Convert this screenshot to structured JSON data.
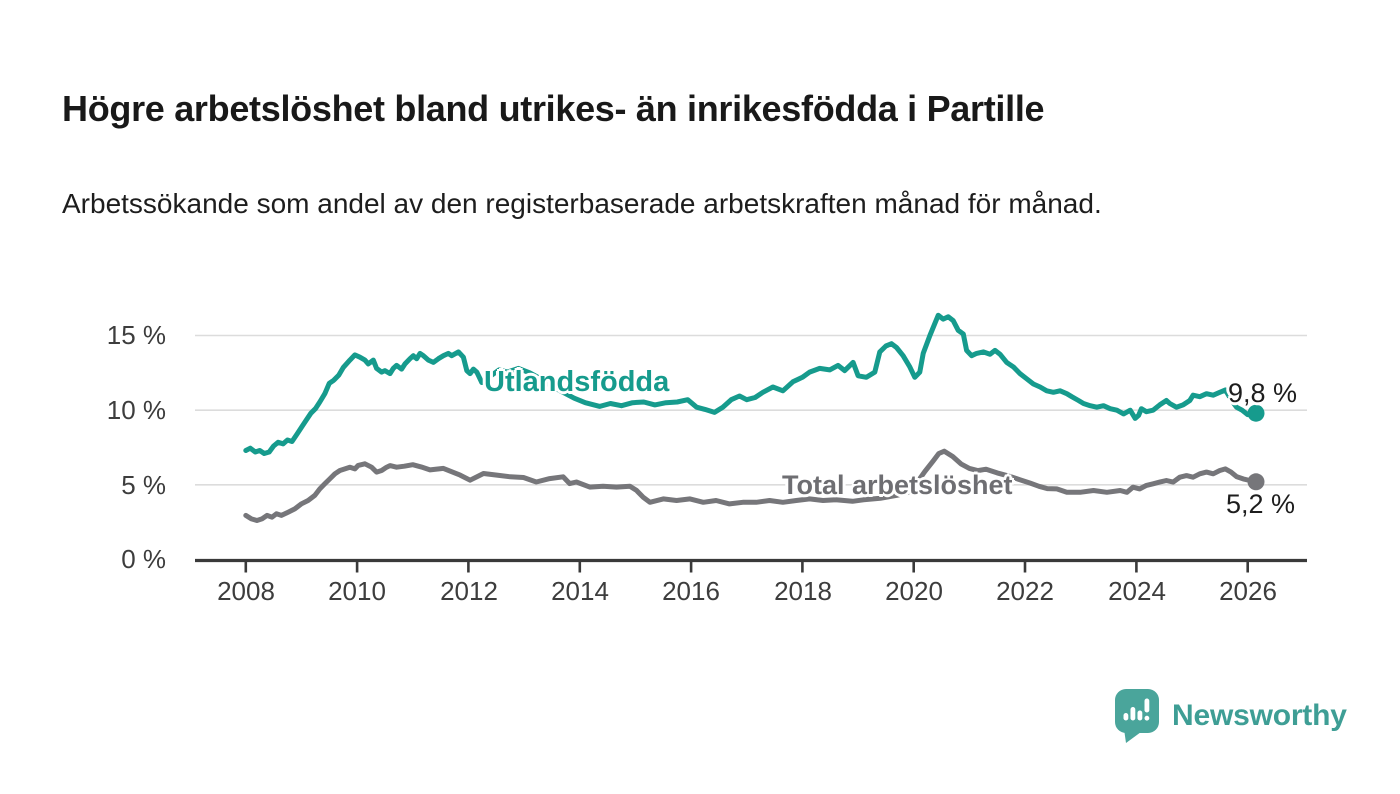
{
  "header": {
    "title": "Högre arbetslöshet bland utrikes- än inrikesfödda i Partille",
    "subtitle": "Arbetssökande som andel av den registerbaserade arbetskraften månad för månad."
  },
  "chart_data": {
    "type": "line",
    "title": "Högre arbetslöshet bland utrikes- än inrikesfödda i Partille",
    "subtitle": "Arbetssökande som andel av den registerbaserade arbetskraften månad för månad.",
    "unit": "%",
    "legend_position": "inline-labels-on-lines",
    "x_axis": {
      "range": [
        2007.1,
        2027.1
      ],
      "ticks": [
        2008,
        2010,
        2012,
        2014,
        2016,
        2018,
        2020,
        2022,
        2024,
        2026
      ],
      "grid": false
    },
    "y_axis": {
      "range": [
        0,
        17.5
      ],
      "gridlines": [
        5,
        10,
        15
      ],
      "ticks": [
        {
          "value": 0,
          "label": "0 %"
        },
        {
          "value": 5,
          "label": "5 %"
        },
        {
          "value": 10,
          "label": "10 %"
        },
        {
          "value": 15,
          "label": "15 %"
        }
      ]
    },
    "series": [
      {
        "name": "Utlandsfödda",
        "color": "#169b8d",
        "end_label": "9,8 %",
        "end_value": 9.8,
        "points": [
          [
            2008.0,
            7.3
          ],
          [
            2008.08,
            7.45
          ],
          [
            2008.17,
            7.2
          ],
          [
            2008.25,
            7.3
          ],
          [
            2008.33,
            7.1
          ],
          [
            2008.42,
            7.2
          ],
          [
            2008.5,
            7.6
          ],
          [
            2008.58,
            7.85
          ],
          [
            2008.67,
            7.75
          ],
          [
            2008.75,
            8.0
          ],
          [
            2008.83,
            7.9
          ],
          [
            2008.92,
            8.4
          ],
          [
            2009.0,
            8.85
          ],
          [
            2009.08,
            9.3
          ],
          [
            2009.17,
            9.8
          ],
          [
            2009.25,
            10.1
          ],
          [
            2009.33,
            10.55
          ],
          [
            2009.42,
            11.1
          ],
          [
            2009.5,
            11.8
          ],
          [
            2009.58,
            12.0
          ],
          [
            2009.67,
            12.35
          ],
          [
            2009.75,
            12.85
          ],
          [
            2009.87,
            13.35
          ],
          [
            2009.96,
            13.7
          ],
          [
            2010.05,
            13.55
          ],
          [
            2010.14,
            13.35
          ],
          [
            2010.2,
            13.1
          ],
          [
            2010.29,
            13.35
          ],
          [
            2010.35,
            12.8
          ],
          [
            2010.44,
            12.55
          ],
          [
            2010.5,
            12.65
          ],
          [
            2010.59,
            12.45
          ],
          [
            2010.65,
            12.8
          ],
          [
            2010.71,
            13.0
          ],
          [
            2010.8,
            12.75
          ],
          [
            2010.86,
            13.1
          ],
          [
            2010.95,
            13.45
          ],
          [
            2011.01,
            13.65
          ],
          [
            2011.07,
            13.45
          ],
          [
            2011.13,
            13.8
          ],
          [
            2011.19,
            13.65
          ],
          [
            2011.28,
            13.35
          ],
          [
            2011.37,
            13.2
          ],
          [
            2011.46,
            13.45
          ],
          [
            2011.55,
            13.65
          ],
          [
            2011.64,
            13.8
          ],
          [
            2011.7,
            13.65
          ],
          [
            2011.82,
            13.9
          ],
          [
            2011.91,
            13.55
          ],
          [
            2011.97,
            12.65
          ],
          [
            2012.03,
            12.45
          ],
          [
            2012.09,
            12.75
          ],
          [
            2012.15,
            12.55
          ],
          [
            2012.24,
            11.85
          ],
          [
            2012.32,
            12.05
          ],
          [
            2012.42,
            12.35
          ],
          [
            2012.55,
            12.7
          ],
          [
            2012.7,
            12.55
          ],
          [
            2012.9,
            12.8
          ],
          [
            2013.1,
            12.5
          ],
          [
            2013.3,
            12.1
          ],
          [
            2013.5,
            11.6
          ],
          [
            2013.7,
            11.2
          ],
          [
            2013.9,
            10.8
          ],
          [
            2014.1,
            10.5
          ],
          [
            2014.36,
            10.25
          ],
          [
            2014.55,
            10.45
          ],
          [
            2014.75,
            10.3
          ],
          [
            2014.95,
            10.5
          ],
          [
            2015.15,
            10.55
          ],
          [
            2015.35,
            10.35
          ],
          [
            2015.55,
            10.5
          ],
          [
            2015.75,
            10.55
          ],
          [
            2015.94,
            10.7
          ],
          [
            2016.1,
            10.2
          ],
          [
            2016.25,
            10.05
          ],
          [
            2016.42,
            9.85
          ],
          [
            2016.57,
            10.2
          ],
          [
            2016.72,
            10.7
          ],
          [
            2016.87,
            10.95
          ],
          [
            2017.0,
            10.7
          ],
          [
            2017.15,
            10.85
          ],
          [
            2017.29,
            11.2
          ],
          [
            2017.47,
            11.55
          ],
          [
            2017.65,
            11.3
          ],
          [
            2017.83,
            11.9
          ],
          [
            2018.0,
            12.2
          ],
          [
            2018.13,
            12.55
          ],
          [
            2018.31,
            12.8
          ],
          [
            2018.49,
            12.7
          ],
          [
            2018.64,
            13.0
          ],
          [
            2018.76,
            12.65
          ],
          [
            2018.91,
            13.2
          ],
          [
            2019.0,
            12.3
          ],
          [
            2019.15,
            12.2
          ],
          [
            2019.3,
            12.55
          ],
          [
            2019.39,
            13.9
          ],
          [
            2019.5,
            14.3
          ],
          [
            2019.6,
            14.45
          ],
          [
            2019.69,
            14.2
          ],
          [
            2019.81,
            13.65
          ],
          [
            2019.93,
            12.9
          ],
          [
            2020.02,
            12.2
          ],
          [
            2020.11,
            12.55
          ],
          [
            2020.17,
            13.8
          ],
          [
            2020.29,
            15.0
          ],
          [
            2020.44,
            16.35
          ],
          [
            2020.53,
            16.1
          ],
          [
            2020.62,
            16.25
          ],
          [
            2020.71,
            16.0
          ],
          [
            2020.8,
            15.35
          ],
          [
            2020.89,
            15.1
          ],
          [
            2020.95,
            14.0
          ],
          [
            2021.04,
            13.65
          ],
          [
            2021.13,
            13.8
          ],
          [
            2021.25,
            13.9
          ],
          [
            2021.37,
            13.75
          ],
          [
            2021.46,
            14.0
          ],
          [
            2021.55,
            13.75
          ],
          [
            2021.67,
            13.2
          ],
          [
            2021.79,
            12.9
          ],
          [
            2021.91,
            12.45
          ],
          [
            2022.03,
            12.1
          ],
          [
            2022.15,
            11.75
          ],
          [
            2022.27,
            11.55
          ],
          [
            2022.39,
            11.3
          ],
          [
            2022.51,
            11.2
          ],
          [
            2022.63,
            11.3
          ],
          [
            2022.75,
            11.1
          ],
          [
            2022.84,
            10.9
          ],
          [
            2022.96,
            10.65
          ],
          [
            2023.05,
            10.45
          ],
          [
            2023.17,
            10.3
          ],
          [
            2023.29,
            10.2
          ],
          [
            2023.41,
            10.3
          ],
          [
            2023.53,
            10.1
          ],
          [
            2023.65,
            10.0
          ],
          [
            2023.77,
            9.75
          ],
          [
            2023.89,
            10.0
          ],
          [
            2023.98,
            9.45
          ],
          [
            2024.04,
            9.65
          ],
          [
            2024.09,
            10.1
          ],
          [
            2024.18,
            9.9
          ],
          [
            2024.3,
            10.0
          ],
          [
            2024.42,
            10.35
          ],
          [
            2024.54,
            10.65
          ],
          [
            2024.6,
            10.45
          ],
          [
            2024.72,
            10.2
          ],
          [
            2024.84,
            10.35
          ],
          [
            2024.96,
            10.65
          ],
          [
            2025.02,
            11.0
          ],
          [
            2025.14,
            10.9
          ],
          [
            2025.26,
            11.1
          ],
          [
            2025.38,
            11.0
          ],
          [
            2025.5,
            11.2
          ],
          [
            2025.6,
            11.35
          ],
          [
            2025.72,
            10.6
          ],
          [
            2025.8,
            10.2
          ],
          [
            2025.9,
            10.0
          ],
          [
            2026.0,
            9.7
          ],
          [
            2026.15,
            9.8
          ]
        ]
      },
      {
        "name": "Total arbetslöshet",
        "color": "#76767a",
        "end_label": "5,2 %",
        "end_value": 5.2,
        "points": [
          [
            2008.0,
            2.95
          ],
          [
            2008.1,
            2.72
          ],
          [
            2008.2,
            2.61
          ],
          [
            2008.29,
            2.72
          ],
          [
            2008.38,
            2.95
          ],
          [
            2008.47,
            2.83
          ],
          [
            2008.55,
            3.06
          ],
          [
            2008.64,
            2.95
          ],
          [
            2008.76,
            3.17
          ],
          [
            2008.88,
            3.39
          ],
          [
            2009.0,
            3.73
          ],
          [
            2009.12,
            3.95
          ],
          [
            2009.24,
            4.29
          ],
          [
            2009.33,
            4.73
          ],
          [
            2009.42,
            5.07
          ],
          [
            2009.51,
            5.4
          ],
          [
            2009.6,
            5.74
          ],
          [
            2009.69,
            5.96
          ],
          [
            2009.78,
            6.07
          ],
          [
            2009.87,
            6.18
          ],
          [
            2009.96,
            6.07
          ],
          [
            2010.02,
            6.3
          ],
          [
            2010.14,
            6.41
          ],
          [
            2010.26,
            6.18
          ],
          [
            2010.35,
            5.85
          ],
          [
            2010.44,
            5.96
          ],
          [
            2010.53,
            6.18
          ],
          [
            2010.59,
            6.29
          ],
          [
            2010.71,
            6.18
          ],
          [
            2010.85,
            6.25
          ],
          [
            2011.0,
            6.35
          ],
          [
            2011.15,
            6.2
          ],
          [
            2011.31,
            6.0
          ],
          [
            2011.55,
            6.1
          ],
          [
            2011.85,
            5.65
          ],
          [
            2012.03,
            5.31
          ],
          [
            2012.27,
            5.76
          ],
          [
            2012.51,
            5.65
          ],
          [
            2012.75,
            5.54
          ],
          [
            2012.99,
            5.49
          ],
          [
            2013.22,
            5.19
          ],
          [
            2013.46,
            5.42
          ],
          [
            2013.7,
            5.54
          ],
          [
            2013.82,
            5.08
          ],
          [
            2013.94,
            5.19
          ],
          [
            2014.18,
            4.85
          ],
          [
            2014.42,
            4.9
          ],
          [
            2014.66,
            4.85
          ],
          [
            2014.9,
            4.9
          ],
          [
            2015.02,
            4.63
          ],
          [
            2015.14,
            4.17
          ],
          [
            2015.26,
            3.83
          ],
          [
            2015.5,
            4.06
          ],
          [
            2015.74,
            3.95
          ],
          [
            2015.98,
            4.06
          ],
          [
            2016.22,
            3.83
          ],
          [
            2016.45,
            3.95
          ],
          [
            2016.69,
            3.72
          ],
          [
            2016.93,
            3.83
          ],
          [
            2017.17,
            3.83
          ],
          [
            2017.41,
            3.95
          ],
          [
            2017.65,
            3.83
          ],
          [
            2017.89,
            3.95
          ],
          [
            2018.13,
            4.06
          ],
          [
            2018.37,
            3.95
          ],
          [
            2018.6,
            4.0
          ],
          [
            2018.9,
            3.9
          ],
          [
            2019.1,
            4.0
          ],
          [
            2019.4,
            4.1
          ],
          [
            2019.7,
            4.3
          ],
          [
            2019.9,
            4.5
          ],
          [
            2020.05,
            5.1
          ],
          [
            2020.2,
            5.9
          ],
          [
            2020.35,
            6.6
          ],
          [
            2020.45,
            7.1
          ],
          [
            2020.55,
            7.25
          ],
          [
            2020.7,
            6.9
          ],
          [
            2020.85,
            6.4
          ],
          [
            2021.0,
            6.1
          ],
          [
            2021.15,
            5.95
          ],
          [
            2021.3,
            6.05
          ],
          [
            2021.5,
            5.8
          ],
          [
            2021.7,
            5.6
          ],
          [
            2021.9,
            5.35
          ],
          [
            2022.1,
            5.1
          ],
          [
            2022.25,
            4.9
          ],
          [
            2022.4,
            4.75
          ],
          [
            2022.57,
            4.73
          ],
          [
            2022.75,
            4.51
          ],
          [
            2022.99,
            4.5
          ],
          [
            2023.23,
            4.62
          ],
          [
            2023.47,
            4.5
          ],
          [
            2023.71,
            4.62
          ],
          [
            2023.83,
            4.5
          ],
          [
            2023.94,
            4.84
          ],
          [
            2024.06,
            4.73
          ],
          [
            2024.18,
            4.96
          ],
          [
            2024.3,
            5.07
          ],
          [
            2024.42,
            5.18
          ],
          [
            2024.54,
            5.29
          ],
          [
            2024.66,
            5.18
          ],
          [
            2024.78,
            5.51
          ],
          [
            2024.9,
            5.62
          ],
          [
            2025.02,
            5.51
          ],
          [
            2025.14,
            5.74
          ],
          [
            2025.26,
            5.85
          ],
          [
            2025.38,
            5.74
          ],
          [
            2025.5,
            5.96
          ],
          [
            2025.6,
            6.07
          ],
          [
            2025.7,
            5.85
          ],
          [
            2025.8,
            5.55
          ],
          [
            2025.92,
            5.4
          ],
          [
            2026.04,
            5.29
          ],
          [
            2026.15,
            5.2
          ]
        ]
      }
    ]
  },
  "branding": {
    "name": "Newsworthy",
    "color": "#3e9e95",
    "icon": "newsworthy-speech-bubble-chart-icon"
  }
}
